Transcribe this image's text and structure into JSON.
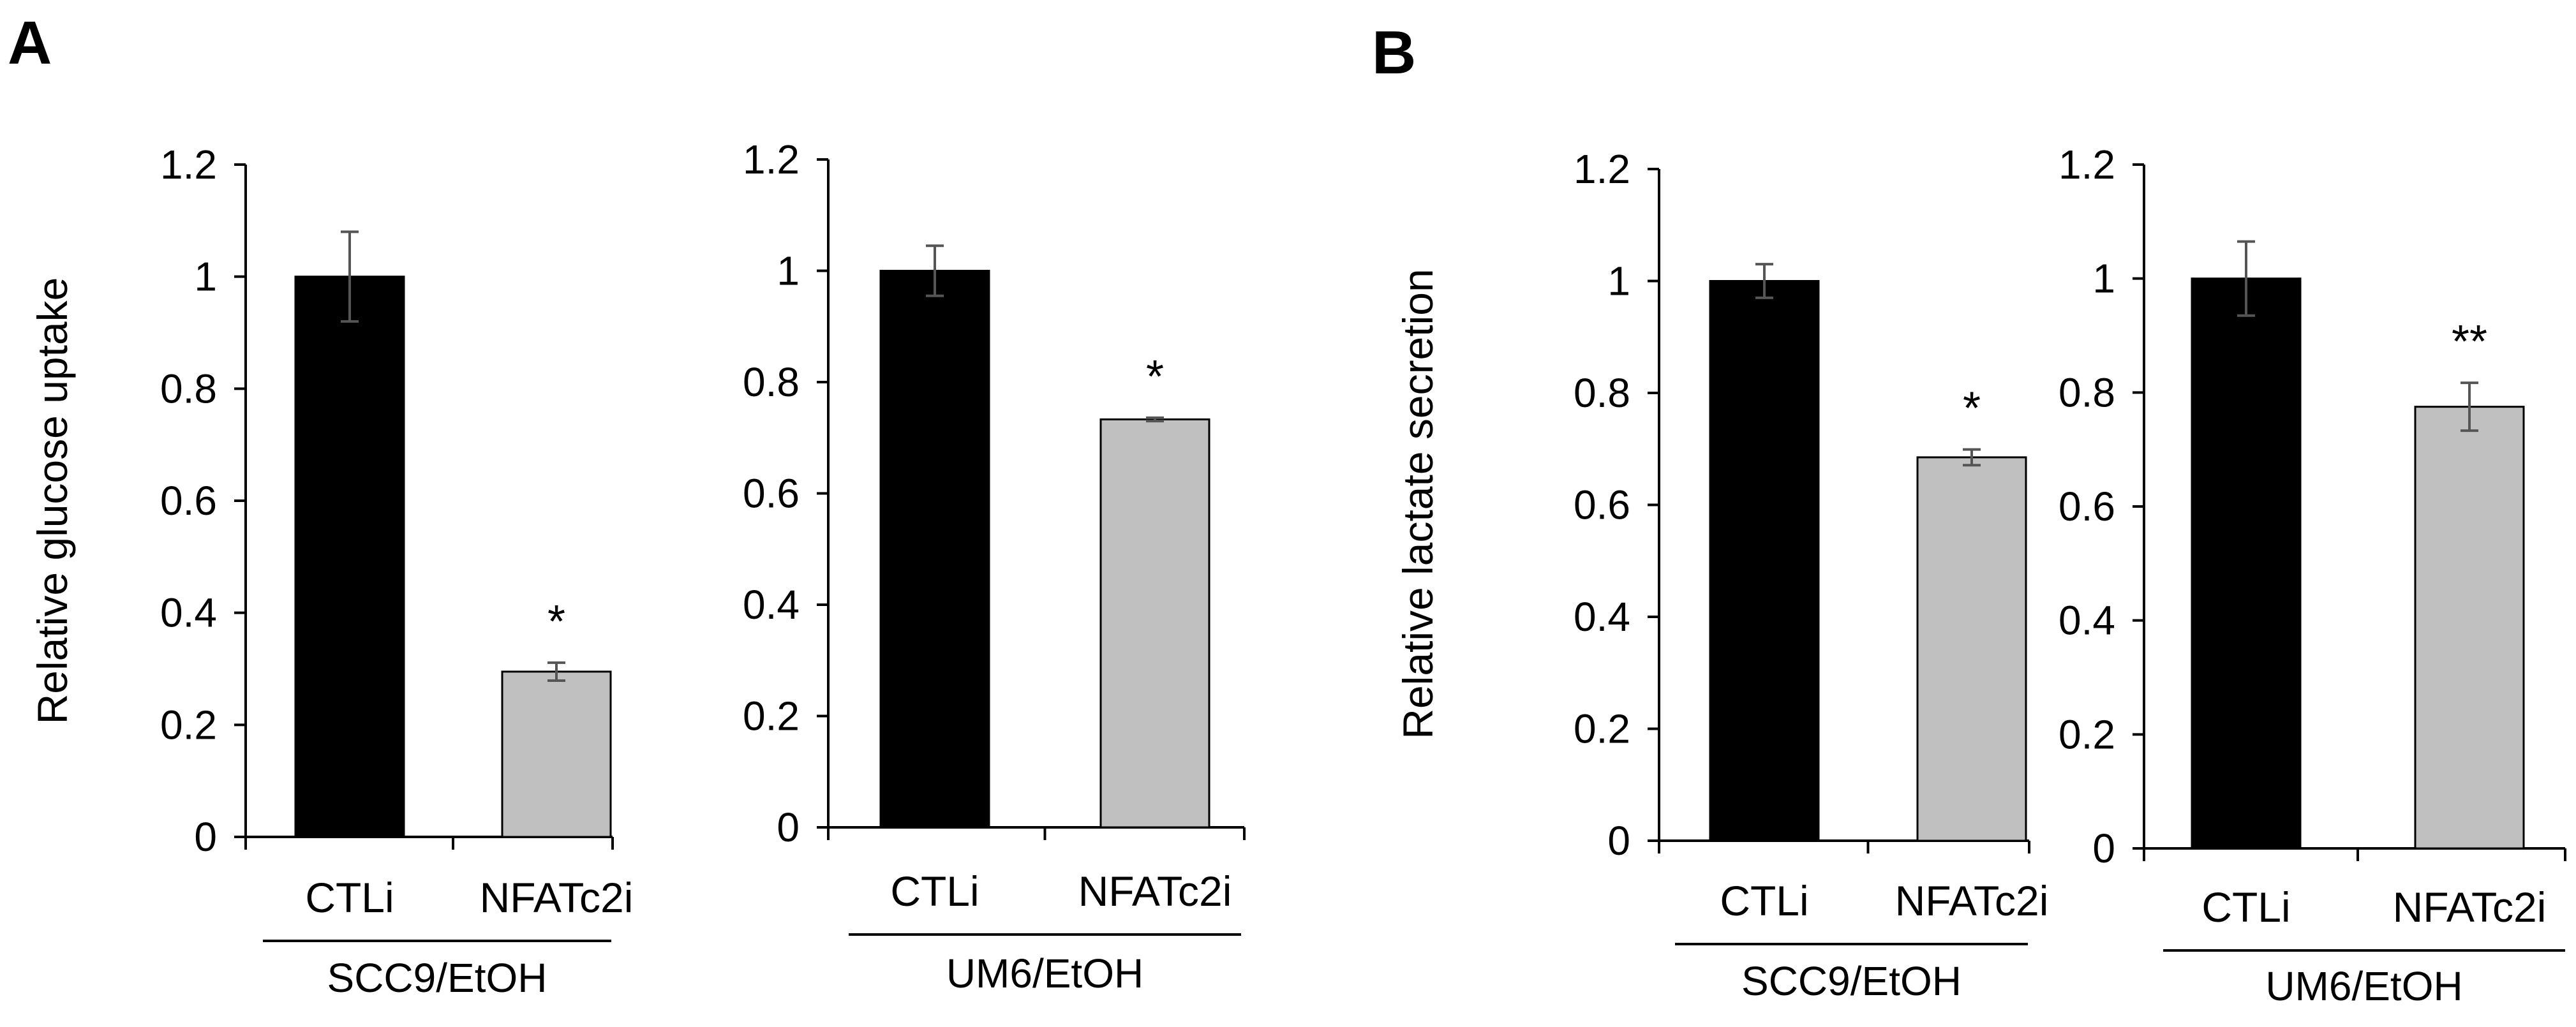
{
  "panels": [
    {
      "letter": "A",
      "ylabel": "Relative glucose uptake"
    },
    {
      "letter": "B",
      "ylabel": "Relative lactate secretion"
    }
  ],
  "colors": {
    "ctl_bar": "#000000",
    "treat_bar": "#c0c0c0",
    "axis": "#000000",
    "errorbar": "#555555"
  },
  "chart_data": [
    {
      "type": "bar",
      "panel": "A",
      "categories": [
        "CTLi",
        "NFATc2i"
      ],
      "group": "SCC9/EtOH",
      "ylabel": "Relative glucose uptake",
      "ylim": [
        0,
        1.2
      ],
      "yticks": [
        "0",
        "0.2",
        "0.4",
        "0.6",
        "0.8",
        "1",
        "1.2"
      ],
      "values": [
        1.0,
        0.295
      ],
      "errors": [
        0.08,
        0.016
      ],
      "significance": [
        "",
        "*"
      ]
    },
    {
      "type": "bar",
      "panel": "A",
      "categories": [
        "CTLi",
        "NFATc2i"
      ],
      "group": "UM6/EtOH",
      "ylabel": "",
      "ylim": [
        0,
        1.2
      ],
      "yticks": [
        "0",
        "0.2",
        "0.4",
        "0.6",
        "0.8",
        "1",
        "1.2"
      ],
      "values": [
        1.0,
        0.733
      ],
      "errors": [
        0.045,
        0.003
      ],
      "significance": [
        "",
        "*"
      ]
    },
    {
      "type": "bar",
      "panel": "B",
      "categories": [
        "CTLi",
        "NFATc2i"
      ],
      "group": "SCC9/EtOH",
      "ylabel": "Relative lactate secretion",
      "ylim": [
        0,
        1.2
      ],
      "yticks": [
        "0",
        "0.2",
        "0.4",
        "0.6",
        "0.8",
        "1",
        "1.2"
      ],
      "values": [
        1.0,
        0.685
      ],
      "errors": [
        0.03,
        0.014
      ],
      "significance": [
        "",
        "*"
      ]
    },
    {
      "type": "bar",
      "panel": "B",
      "categories": [
        "CTLi",
        "NFATc2i"
      ],
      "group": "UM6/EtOH",
      "ylabel": "",
      "ylim": [
        0,
        1.2
      ],
      "yticks": [
        "0",
        "0.2",
        "0.4",
        "0.6",
        "0.8",
        "1",
        "1.2"
      ],
      "values": [
        1.0,
        0.775
      ],
      "errors": [
        0.065,
        0.042
      ],
      "significance": [
        "",
        "**"
      ]
    }
  ]
}
